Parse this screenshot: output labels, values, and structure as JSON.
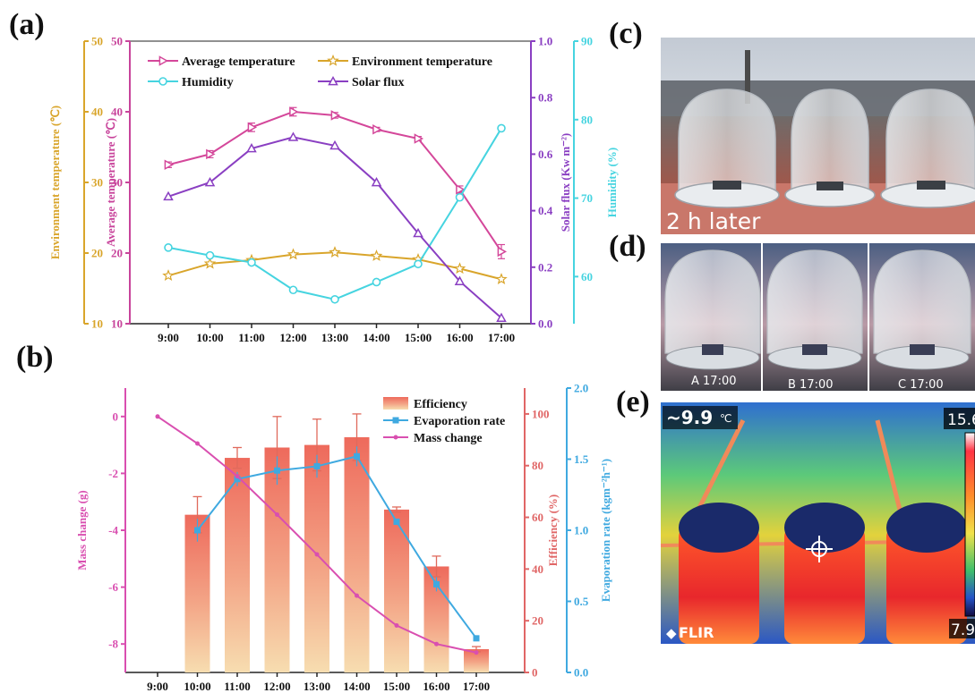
{
  "panel_labels": {
    "a": "(a)",
    "b": "(b)",
    "c": "(c)",
    "d": "(d)",
    "e": "(e)"
  },
  "chart_data": [
    {
      "type": "line",
      "panel": "(a)",
      "categories": [
        "9:00",
        "10:00",
        "11:00",
        "12:00",
        "13:00",
        "14:00",
        "15:00",
        "16:00",
        "17:00"
      ],
      "axes": {
        "env": {
          "label": "Environment temperature (℃)",
          "range": [
            10,
            50
          ],
          "ticks": [
            10,
            20,
            30,
            40,
            50
          ],
          "color": "#d9a52b"
        },
        "avg": {
          "label": "Average temperature (℃)",
          "range": [
            10,
            50
          ],
          "ticks": [
            10,
            20,
            30,
            40,
            50
          ],
          "color": "#c8449b"
        },
        "solar": {
          "label": "Solar flux (Kw m⁻²)",
          "range": [
            0,
            1
          ],
          "ticks": [
            "0.0",
            "0.2",
            "0.4",
            "0.6",
            "0.8",
            "1.0"
          ],
          "color": "#8a3fc2"
        },
        "humidity": {
          "label": "Humidity (%)",
          "range": [
            54,
            90
          ],
          "ticks": [
            60,
            70,
            80,
            90
          ],
          "color": "#46d4e0"
        }
      },
      "series": [
        {
          "name": "Average temperature",
          "axis": "avg",
          "color": "#d4479a",
          "marker": "triangle-right",
          "values": [
            32.5,
            34.0,
            37.8,
            40.0,
            39.5,
            37.5,
            36.2,
            29.0,
            20.2
          ],
          "errors": [
            0.4,
            0.5,
            0.6,
            0.6,
            0.4,
            0.3,
            0.3,
            0.5,
            1.0
          ]
        },
        {
          "name": "Environment temperature",
          "axis": "env",
          "color": "#d9a52b",
          "marker": "star",
          "values": [
            16.8,
            18.5,
            19.0,
            19.8,
            20.1,
            19.6,
            19.1,
            17.8,
            16.3
          ]
        },
        {
          "name": "Humidity",
          "axis": "humidity",
          "color": "#46d4e0",
          "marker": "circle",
          "values": [
            63.7,
            62.7,
            61.8,
            58.3,
            57.1,
            59.3,
            61.6,
            70.1,
            78.9
          ]
        },
        {
          "name": "Solar flux",
          "axis": "solar",
          "color": "#8a3fc2",
          "marker": "triangle-up",
          "values": [
            0.45,
            0.5,
            0.62,
            0.66,
            0.63,
            0.5,
            0.32,
            0.15,
            0.02
          ]
        }
      ]
    },
    {
      "type": "bar",
      "panel": "(b)",
      "categories": [
        "9:00",
        "10:00",
        "11:00",
        "12:00",
        "13:00",
        "14:00",
        "15:00",
        "16:00",
        "17:00"
      ],
      "axes": {
        "mass": {
          "label": "Mass change (g)",
          "range": [
            -9,
            1
          ],
          "ticks": [
            0,
            -2,
            -4,
            -6,
            -8
          ],
          "color": "#d94fb0"
        },
        "eff": {
          "label": "Efficiency (%)",
          "range": [
            0,
            110
          ],
          "ticks": [
            0,
            20,
            40,
            60,
            80,
            100
          ],
          "color": "#e06666"
        },
        "evap": {
          "label": "Evaporation rate (kgm⁻²h⁻¹)",
          "range": [
            0,
            2
          ],
          "ticks": [
            "0.0",
            "0.5",
            "1.0",
            "1.5",
            "2.0"
          ],
          "color": "#3fa9e0"
        }
      },
      "series": [
        {
          "name": "Efficiency",
          "axis": "eff",
          "kind": "bar",
          "color": "#e86060",
          "values": [
            null,
            61,
            83,
            87,
            88,
            91,
            63,
            41,
            9
          ],
          "errors": [
            null,
            7,
            4,
            12,
            10,
            9,
            1,
            4,
            1
          ]
        },
        {
          "name": "Evaporation rate",
          "axis": "evap",
          "kind": "line",
          "color": "#3fa9e0",
          "values": [
            null,
            1.0,
            1.36,
            1.42,
            1.45,
            1.52,
            1.06,
            0.62,
            0.24
          ],
          "errors": [
            null,
            0.08,
            0.05,
            0.1,
            0.08,
            0.07,
            0.02,
            0.05,
            0.02
          ]
        },
        {
          "name": "Mass change",
          "axis": "mass",
          "kind": "line",
          "color": "#d94fb0",
          "values": [
            0,
            -0.95,
            -2.1,
            -3.45,
            -4.85,
            -6.3,
            -7.35,
            -8.0,
            -8.3
          ]
        }
      ]
    }
  ],
  "photos": {
    "c": {
      "caption": "2 h later"
    },
    "d": {
      "captions": [
        "A  17:00",
        "B  17:00",
        "C  17:00"
      ]
    },
    "e": {
      "temp_readout": "~9.9",
      "temp_unit": "℃",
      "scale_max": "15.6",
      "scale_min": "7.9",
      "brand": "FLIR"
    }
  }
}
